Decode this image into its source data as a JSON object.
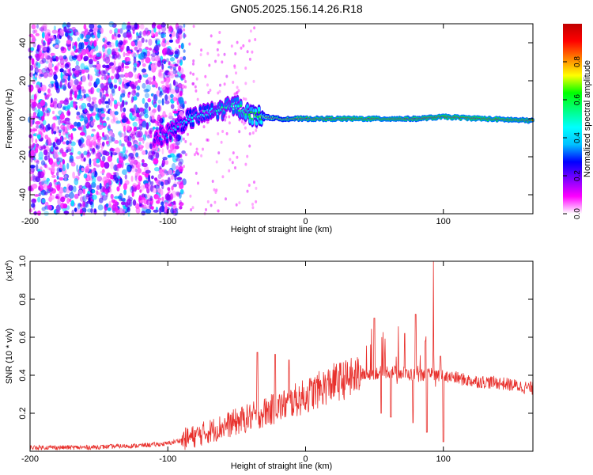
{
  "title": "GN05.2025.156.14.26.R18",
  "chart_data": [
    {
      "type": "heatmap",
      "xlabel": "Height of straight line (km)",
      "ylabel": "Frequency (Hz)",
      "xlim": [
        -200,
        165
      ],
      "ylim": [
        -50,
        50
      ],
      "xticks": [
        -200,
        -100,
        0,
        100
      ],
      "yticks": [
        -40,
        -20,
        0,
        20,
        40
      ],
      "colorbar": {
        "label": "Normalized spectral amplitude",
        "range": [
          0,
          1
        ],
        "ticks": [
          "0.0",
          "0.2",
          "0.4",
          "0.6",
          "0.8"
        ],
        "colors": [
          "#ffffff",
          "#ff00ff",
          "#8000ff",
          "#0000ff",
          "#00c0ff",
          "#00ffff",
          "#00ff80",
          "#00ff00",
          "#ffff00",
          "#ff8000",
          "#ff0000",
          "#c00000"
        ]
      },
      "noise_region": {
        "x": [
          -200,
          -88
        ],
        "amplitude": 0.25
      },
      "ridge": [
        {
          "x": -110,
          "y": -10,
          "amp": 0.3
        },
        {
          "x": -100,
          "y": -8,
          "amp": 0.35
        },
        {
          "x": -90,
          "y": -2,
          "amp": 0.4
        },
        {
          "x": -80,
          "y": 1,
          "amp": 0.45
        },
        {
          "x": -70,
          "y": 3,
          "amp": 0.45
        },
        {
          "x": -60,
          "y": 5,
          "amp": 0.5
        },
        {
          "x": -50,
          "y": 7,
          "amp": 0.5
        },
        {
          "x": -40,
          "y": 2,
          "amp": 0.6
        },
        {
          "x": -30,
          "y": 1,
          "amp": 0.7
        },
        {
          "x": -20,
          "y": 0,
          "amp": 0.8
        },
        {
          "x": 0,
          "y": 0,
          "amp": 0.9
        },
        {
          "x": 40,
          "y": 0,
          "amp": 0.95
        },
        {
          "x": 80,
          "y": 0,
          "amp": 0.9
        },
        {
          "x": 100,
          "y": 1,
          "amp": 0.95
        },
        {
          "x": 130,
          "y": 0,
          "amp": 0.95
        },
        {
          "x": 165,
          "y": -1,
          "amp": 0.9
        }
      ]
    },
    {
      "type": "line",
      "xlabel": "Height of straight line (km)",
      "ylabel": "SNR (10 * v/v)",
      "y_multiplier": "(x10",
      "y_multiplier_exp": "4",
      "xlim": [
        -200,
        165
      ],
      "ylim": [
        0,
        1.0
      ],
      "xticks": [
        -200,
        -100,
        0,
        100
      ],
      "yticks": [
        "0.2",
        "0.4",
        "0.6",
        "0.8",
        "1.0"
      ],
      "color": "#e8302c",
      "envelope": [
        {
          "x": -200,
          "y": 0.02
        },
        {
          "x": -160,
          "y": 0.02
        },
        {
          "x": -120,
          "y": 0.03
        },
        {
          "x": -100,
          "y": 0.04
        },
        {
          "x": -80,
          "y": 0.08
        },
        {
          "x": -60,
          "y": 0.13
        },
        {
          "x": -40,
          "y": 0.18
        },
        {
          "x": -20,
          "y": 0.23
        },
        {
          "x": 0,
          "y": 0.29
        },
        {
          "x": 20,
          "y": 0.36
        },
        {
          "x": 40,
          "y": 0.4
        },
        {
          "x": 60,
          "y": 0.42
        },
        {
          "x": 80,
          "y": 0.4
        },
        {
          "x": 100,
          "y": 0.4
        },
        {
          "x": 120,
          "y": 0.37
        },
        {
          "x": 140,
          "y": 0.36
        },
        {
          "x": 165,
          "y": 0.33
        }
      ],
      "peaks": [
        {
          "x": -35,
          "y": 0.52
        },
        {
          "x": -22,
          "y": 0.51
        },
        {
          "x": -12,
          "y": 0.48
        },
        {
          "x": 50,
          "y": 0.7
        },
        {
          "x": 72,
          "y": 0.62
        },
        {
          "x": 80,
          "y": 0.72
        },
        {
          "x": 87,
          "y": 0.58
        },
        {
          "x": 93,
          "y": 1.0
        },
        {
          "x": 98,
          "y": 0.5
        }
      ],
      "dips": [
        {
          "x": 55,
          "y": 0.2
        },
        {
          "x": 62,
          "y": 0.18
        },
        {
          "x": 78,
          "y": 0.15
        },
        {
          "x": 88,
          "y": 0.1
        },
        {
          "x": 100,
          "y": 0.05
        }
      ]
    }
  ]
}
